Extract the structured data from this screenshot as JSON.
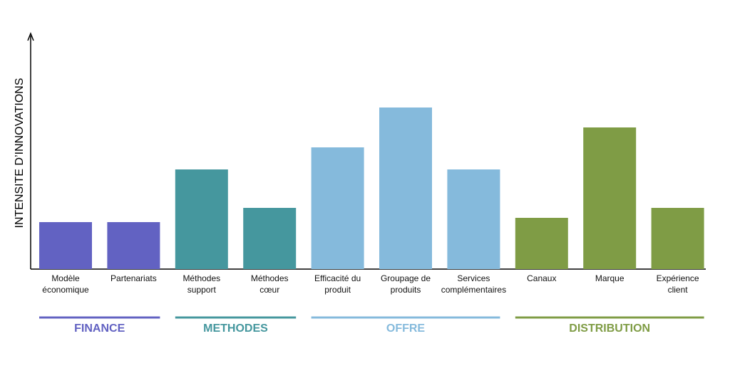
{
  "chart_data": {
    "type": "bar",
    "y_label": "INTENSITE D’INNOVATIONS",
    "ylim": [
      0,
      330
    ],
    "series": [
      {
        "name": "FINANCE",
        "color": "#6262c2",
        "categories": [
          "Modèle\néconomique",
          "Partenariats"
        ],
        "values": [
          66,
          66
        ]
      },
      {
        "name": "METHODES",
        "color": "#45979e",
        "categories": [
          "Méthodes\nsupport",
          "Méthodes\ncœur"
        ],
        "values": [
          140,
          86
        ]
      },
      {
        "name": "OFFRE",
        "color": "#85badc",
        "categories": [
          "Efficacité du\nproduit",
          "Groupage de\nproduits",
          "Services\ncomplémentaires"
        ],
        "values": [
          171,
          227,
          140
        ]
      },
      {
        "name": "DISTRIBUTION",
        "color": "#7f9c45",
        "categories": [
          "Canaux",
          "Marque",
          "Expérience\nclient"
        ],
        "values": [
          72,
          199,
          86
        ]
      }
    ]
  }
}
